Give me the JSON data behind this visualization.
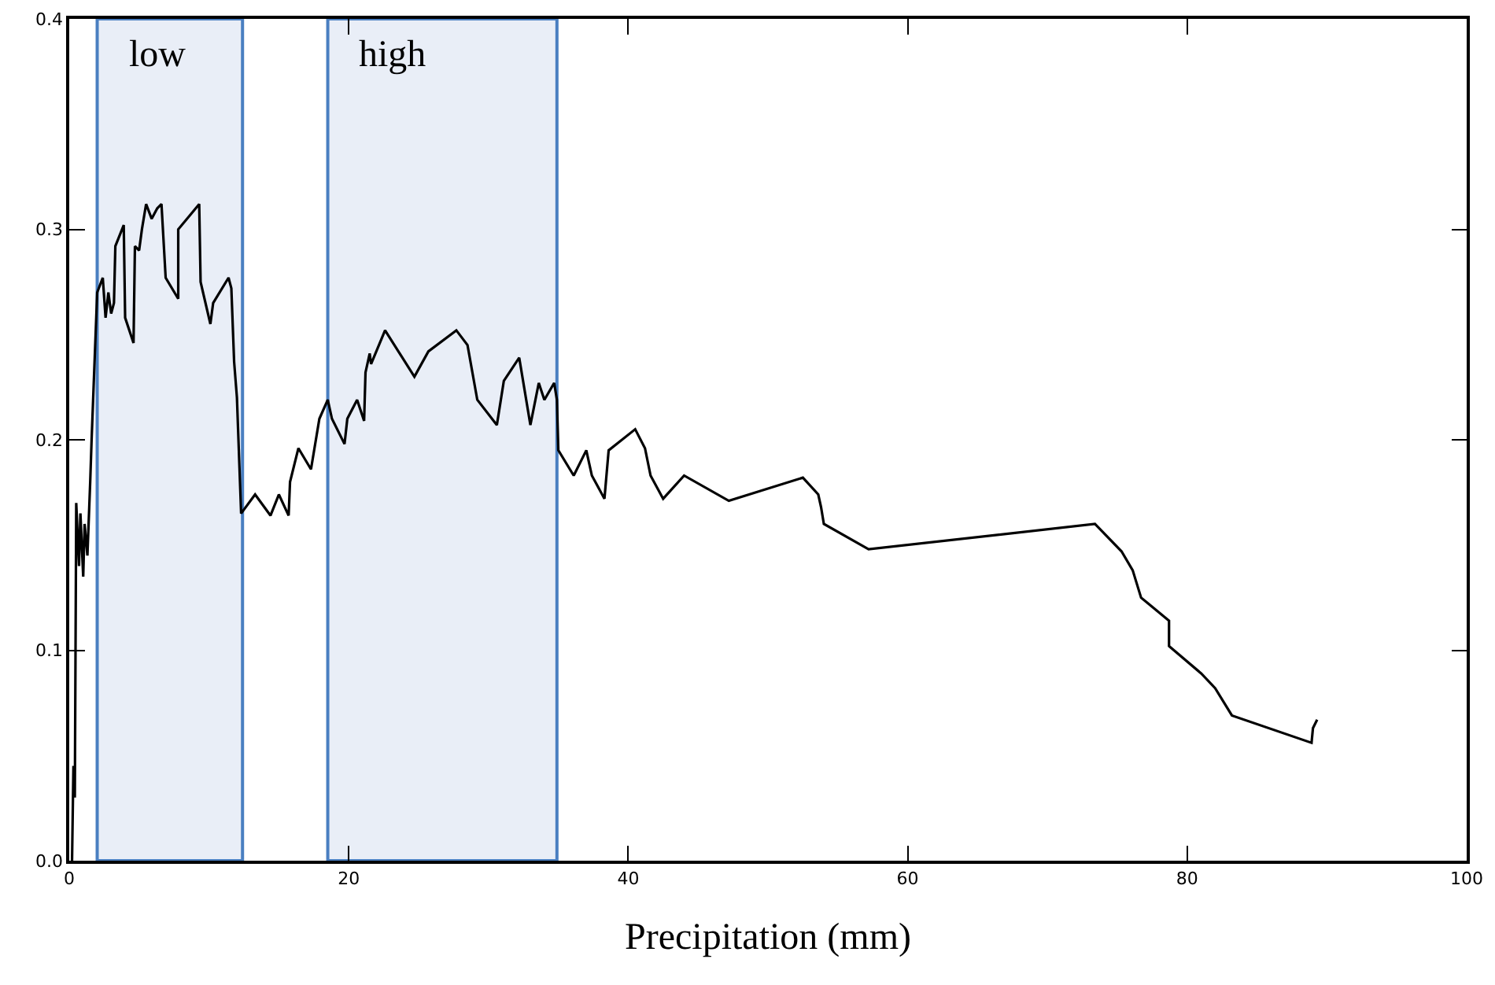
{
  "chart_data": {
    "type": "line",
    "xlabel": "Precipitation (mm)",
    "x": [
      0.2,
      0.3,
      0.4,
      0.5,
      0.7,
      0.8,
      1.0,
      1.1,
      1.3,
      1.5,
      1.6,
      2.0,
      2.4,
      2.6,
      2.8,
      3.0,
      3.2,
      3.3,
      3.9,
      4.0,
      4.6,
      4.7,
      5.0,
      5.2,
      5.5,
      5.9,
      6.3,
      6.6,
      6.9,
      7.8,
      7.8,
      9.3,
      9.4,
      10.1,
      10.3,
      11.4,
      11.6,
      11.8,
      12.0,
      12.3,
      13.3,
      14.4,
      15.0,
      15.7,
      15.8,
      16.4,
      17.3,
      17.9,
      18.5,
      18.8,
      19.7,
      19.9,
      20.6,
      21.1,
      21.2,
      21.5,
      21.6,
      22.6,
      24.7,
      25.7,
      27.7,
      28.5,
      29.2,
      30.6,
      31.1,
      32.2,
      33.0,
      33.6,
      34.0,
      34.7,
      34.9,
      35.0,
      36.1,
      37.0,
      37.4,
      38.3,
      38.6,
      40.5,
      41.2,
      41.6,
      42.5,
      44.0,
      47.2,
      52.5,
      53.6,
      53.8,
      54.0,
      57.2,
      73.4,
      75.3,
      76.1,
      76.7,
      78.7,
      78.7,
      81.0,
      82.0,
      83.2,
      88.9,
      89.0,
      89.3
    ],
    "values": [
      0.0,
      0.045,
      0.03,
      0.17,
      0.14,
      0.165,
      0.135,
      0.16,
      0.145,
      0.18,
      0.2,
      0.27,
      0.277,
      0.258,
      0.27,
      0.26,
      0.265,
      0.292,
      0.302,
      0.258,
      0.246,
      0.292,
      0.29,
      0.3,
      0.312,
      0.305,
      0.31,
      0.312,
      0.277,
      0.267,
      0.3,
      0.312,
      0.275,
      0.255,
      0.265,
      0.277,
      0.272,
      0.237,
      0.22,
      0.165,
      0.174,
      0.164,
      0.174,
      0.164,
      0.18,
      0.196,
      0.186,
      0.21,
      0.219,
      0.21,
      0.198,
      0.21,
      0.219,
      0.209,
      0.232,
      0.241,
      0.236,
      0.252,
      0.23,
      0.242,
      0.252,
      0.245,
      0.219,
      0.207,
      0.228,
      0.239,
      0.207,
      0.227,
      0.219,
      0.227,
      0.219,
      0.195,
      0.183,
      0.195,
      0.183,
      0.172,
      0.195,
      0.205,
      0.196,
      0.183,
      0.172,
      0.183,
      0.171,
      0.182,
      0.174,
      0.168,
      0.16,
      0.148,
      0.16,
      0.147,
      0.138,
      0.125,
      0.114,
      0.102,
      0.089,
      0.082,
      0.069,
      0.056,
      0.063,
      0.067
    ],
    "color": "#000000",
    "xlim": [
      0,
      100
    ],
    "ylim": [
      0,
      0.4
    ],
    "xticks": [
      0,
      20,
      40,
      60,
      80,
      100
    ],
    "yticks": [
      {
        "value": 0,
        "label": "0.0"
      },
      {
        "value": 0.1,
        "label": "0.1"
      },
      {
        "value": 0.2,
        "label": "0.2"
      },
      {
        "value": 0.3,
        "label": "0.3"
      },
      {
        "value": 0.4,
        "label": "0.4"
      }
    ],
    "bands": [
      {
        "axis": "x",
        "from": 2.0,
        "to": 12.4,
        "label": "low",
        "color": "#e9eef7"
      },
      {
        "axis": "x",
        "from": 18.5,
        "to": 34.9,
        "label": "high",
        "color": "#e9eef7"
      }
    ],
    "line_style": "solid"
  }
}
